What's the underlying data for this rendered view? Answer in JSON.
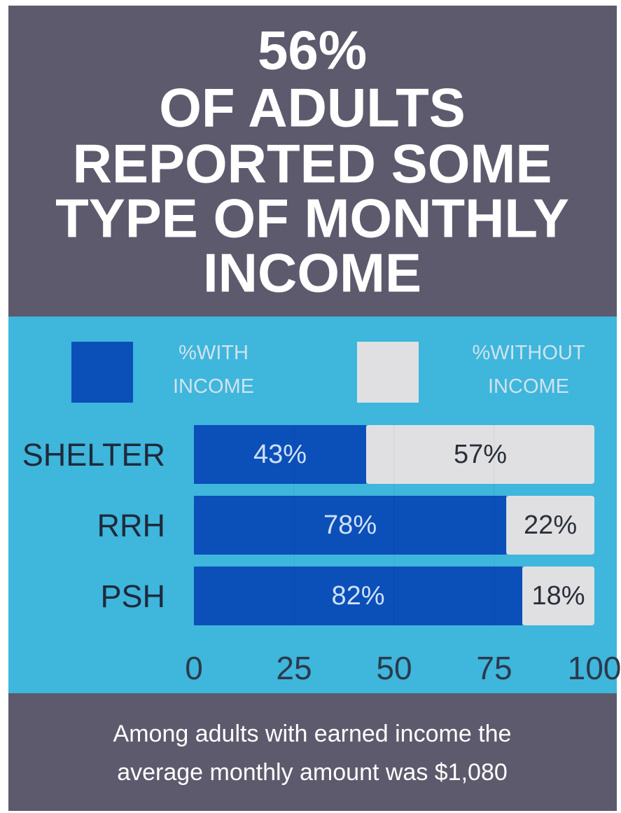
{
  "chart_data": {
    "type": "stacked_barh",
    "title": [
      "56%",
      "OF ADULTS",
      "REPORTED SOME",
      "TYPE OF MONTHLY",
      "INCOME"
    ],
    "categories": [
      "SHELTER",
      "RRH",
      "PSH"
    ],
    "series": [
      {
        "name": "%WITH INCOME",
        "color": "#0b4fb9",
        "values": [
          43,
          78,
          82
        ],
        "value_labels": [
          "43%",
          "78%",
          "82%"
        ]
      },
      {
        "name": "%WITHOUT INCOME",
        "color": "#e0e0e2",
        "values": [
          57,
          22,
          18
        ],
        "value_labels": [
          "57%",
          "22%",
          "18%"
        ]
      }
    ],
    "xlim": [
      0,
      100
    ],
    "xticks": [
      0,
      25,
      50,
      75,
      100
    ],
    "grid": true,
    "footnote": [
      "Among adults with earned income the",
      "average monthly amount was $1,080"
    ]
  }
}
